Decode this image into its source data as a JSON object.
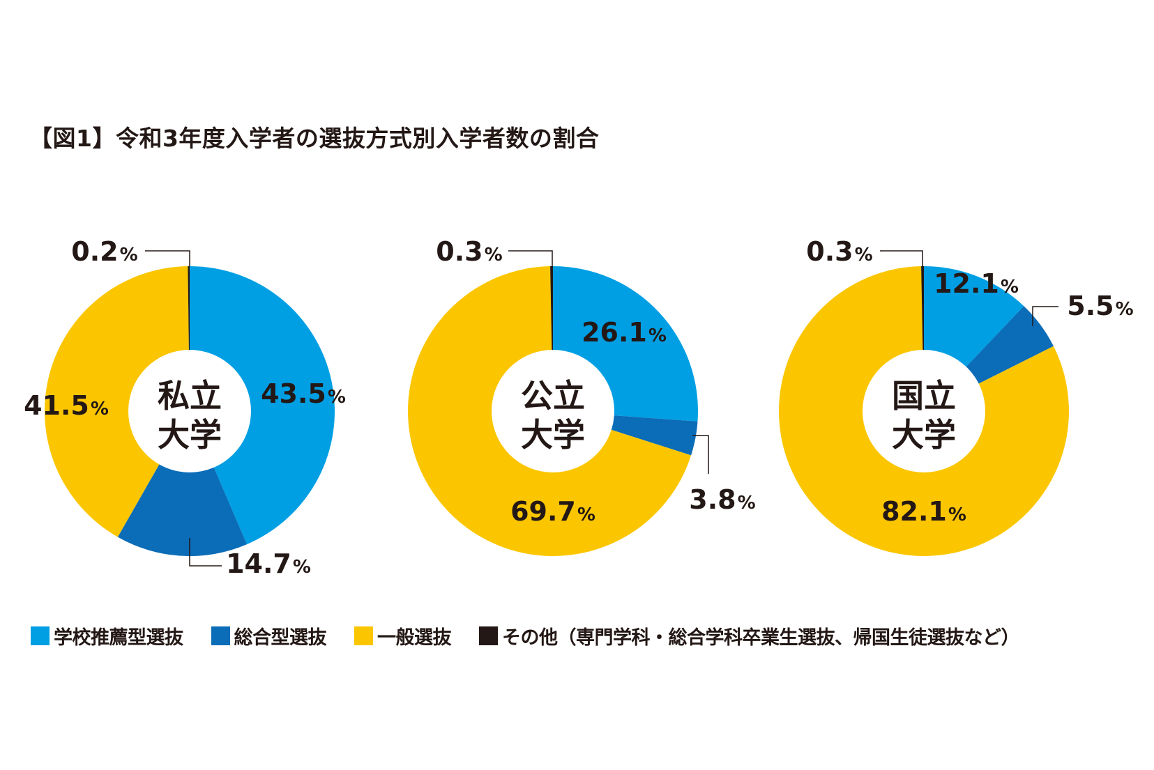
{
  "title": "【図1】令和3年度入学者の選抜方式別入学者数の割合",
  "colors": {
    "school_recommendation": "#009fe3",
    "comprehensive": "#0b6cb7",
    "general": "#fbc600",
    "other": "#231815"
  },
  "chart_data": [
    {
      "type": "pie",
      "center_label": [
        "私立",
        "大学"
      ],
      "slices": [
        {
          "label": "学校推薦型選抜",
          "value": 43.5,
          "display": "43.5",
          "unit": "%"
        },
        {
          "label": "総合型選抜",
          "value": 14.7,
          "display": "14.7",
          "unit": "%"
        },
        {
          "label": "一般選抜",
          "value": 41.5,
          "display": "41.5",
          "unit": "%"
        },
        {
          "label": "その他",
          "value": 0.2,
          "display": "0.2",
          "unit": "%"
        }
      ]
    },
    {
      "type": "pie",
      "center_label": [
        "公立",
        "大学"
      ],
      "slices": [
        {
          "label": "学校推薦型選抜",
          "value": 26.1,
          "display": "26.1",
          "unit": "%"
        },
        {
          "label": "総合型選抜",
          "value": 3.8,
          "display": "3.8",
          "unit": "%"
        },
        {
          "label": "一般選抜",
          "value": 69.7,
          "display": "69.7",
          "unit": "%"
        },
        {
          "label": "その他",
          "value": 0.3,
          "display": "0.3",
          "unit": "%"
        }
      ]
    },
    {
      "type": "pie",
      "center_label": [
        "国立",
        "大学"
      ],
      "slices": [
        {
          "label": "学校推薦型選抜",
          "value": 12.1,
          "display": "12.1",
          "unit": "%"
        },
        {
          "label": "総合型選抜",
          "value": 5.5,
          "display": "5.5",
          "unit": "%"
        },
        {
          "label": "一般選抜",
          "value": 82.1,
          "display": "82.1",
          "unit": "%"
        },
        {
          "label": "その他",
          "value": 0.3,
          "display": "0.3",
          "unit": "%"
        }
      ]
    }
  ],
  "legend": [
    {
      "label": "学校推薦型選抜",
      "color": "#009fe3"
    },
    {
      "label": "総合型選抜",
      "color": "#0b6cb7"
    },
    {
      "label": "一般選抜",
      "color": "#fbc600"
    },
    {
      "label": "その他（専門学科・総合学科卒業生選抜、帰国生徒選抜など）",
      "color": "#231815"
    }
  ]
}
